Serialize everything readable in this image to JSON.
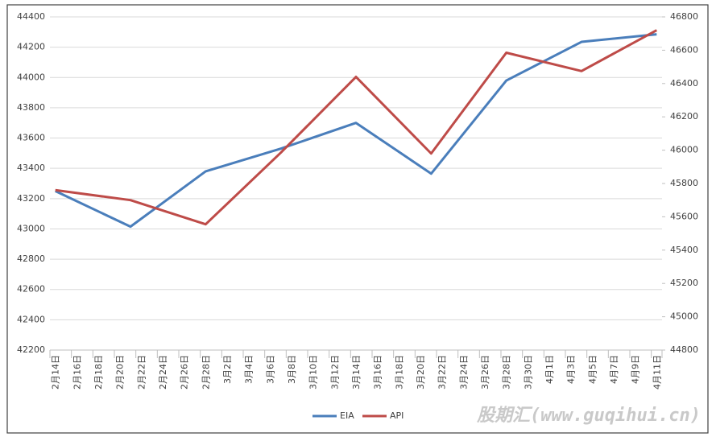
{
  "chart_data": {
    "type": "line",
    "x": [
      "2月14日",
      "2月21日",
      "2月28日",
      "3月7日",
      "3月14日",
      "3月21日",
      "3月28日",
      "4月4日",
      "4月11日"
    ],
    "xlim": [
      "2月14日",
      "4月11日"
    ],
    "xticks": [
      "2月14日",
      "2月16日",
      "2月18日",
      "2月20日",
      "2月22日",
      "2月24日",
      "2月26日",
      "2月28日",
      "3月2日",
      "3月4日",
      "3月6日",
      "3月8日",
      "3月10日",
      "3月12日",
      "3月14日",
      "3月16日",
      "3月18日",
      "3月20日",
      "3月22日",
      "3月24日",
      "3月26日",
      "3月28日",
      "3月30日",
      "4月1日",
      "4月3日",
      "4月5日",
      "4月7日",
      "4月9日",
      "4月11日"
    ],
    "series": [
      {
        "name": "EIA",
        "color": "#4a7ebb",
        "values": [
          43250,
          43015,
          43380,
          43530,
          43700,
          43365,
          43980,
          44235,
          44285
        ]
      },
      {
        "name": "API",
        "color": "#be4b48",
        "axis": "y2",
        "values": [
          45760,
          45700,
          45555,
          45985,
          46440,
          45980,
          46585,
          46475,
          46720
        ]
      }
    ],
    "ylim": [
      42200,
      44400
    ],
    "yticks": [
      42200,
      42400,
      42600,
      42800,
      43000,
      43200,
      43400,
      43600,
      43800,
      44000,
      44200,
      44400
    ],
    "y2lim": [
      44800,
      46800
    ],
    "y2ticks": [
      44800,
      45000,
      45200,
      45400,
      45600,
      45800,
      46000,
      46200,
      46400,
      46600,
      46800
    ],
    "grid": true,
    "legend": "bottom",
    "watermark": "股期汇(www.guqihui.cn)"
  }
}
